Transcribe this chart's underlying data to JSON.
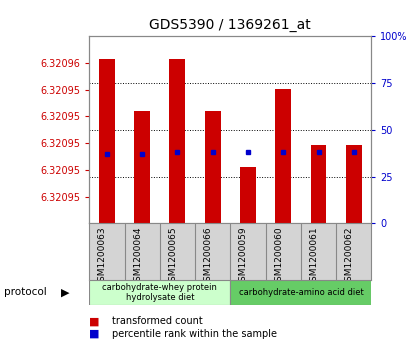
{
  "title": "GDS5390 / 1369261_at",
  "samples": [
    "GSM1200063",
    "GSM1200064",
    "GSM1200065",
    "GSM1200066",
    "GSM1200059",
    "GSM1200060",
    "GSM1200061",
    "GSM1200062"
  ],
  "bar_top_pct": [
    88,
    60,
    88,
    60,
    30,
    72,
    42,
    42
  ],
  "dot_pct": [
    37,
    37,
    38,
    38,
    38,
    38,
    38,
    38
  ],
  "ylim_min": 6.320948,
  "ylim_max": 6.320962,
  "ytick_positions": [
    6.32095,
    6.320952,
    6.320954,
    6.320956,
    6.320958,
    6.32096
  ],
  "ytick_labels": [
    "6.32095",
    "6.32095",
    "6.32095",
    "6.32095",
    "6.32095",
    "6.32096"
  ],
  "right_yticks": [
    0,
    25,
    50,
    75,
    100
  ],
  "bar_color": "#cc0000",
  "dot_color": "#0000cc",
  "group1_label": "carbohydrate-whey protein\nhydrolysate diet",
  "group2_label": "carbohydrate-amino acid diet",
  "group1_color": "#ccffcc",
  "group2_color": "#66cc66",
  "group1_count": 4,
  "group2_count": 4,
  "protocol_label": "protocol",
  "legend_bar_label": "transformed count",
  "legend_dot_label": "percentile rank within the sample",
  "background_color": "#ffffff",
  "xlabel_area_color": "#d4d4d4",
  "ytick_color": "#cc0000",
  "right_ytick_color": "#0000cc",
  "title_color": "#000000"
}
